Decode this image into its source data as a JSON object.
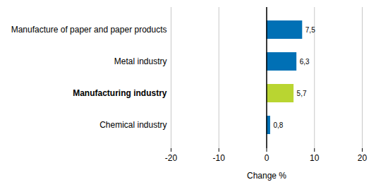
{
  "chart_data": {
    "type": "bar",
    "orientation": "horizontal",
    "categories": [
      "Manufacture of paper and paper products",
      "Metal industry",
      "Manufacturing industry",
      "Chemical industry"
    ],
    "values": [
      7.5,
      6.3,
      5.7,
      0.8
    ],
    "value_labels": [
      "7,5",
      "6,3",
      "5,7",
      "0,8"
    ],
    "colors": [
      "#0070b5",
      "#0070b5",
      "#b9d531",
      "#0070b5"
    ],
    "xlabel": "Change %",
    "xlim": [
      -20,
      20
    ],
    "xticks": [
      -20,
      -10,
      0,
      10,
      20
    ],
    "grid": true,
    "data_labels": true
  }
}
